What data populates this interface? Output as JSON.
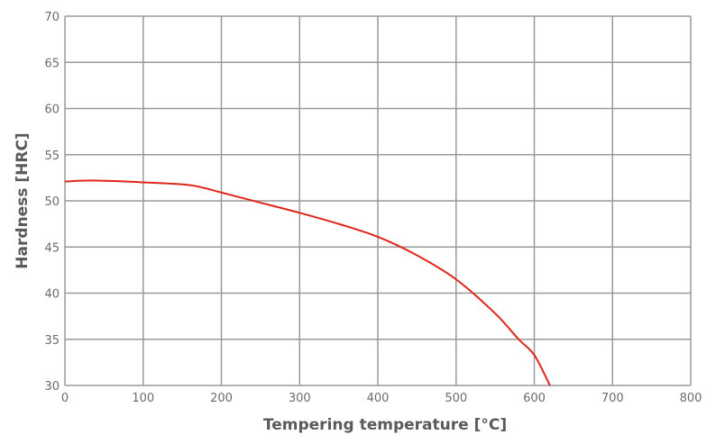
{
  "chart_data": {
    "type": "line",
    "title": "",
    "xlabel": "Tempering temperature [°C]",
    "ylabel": "Hardness [HRC]",
    "xlim": [
      0,
      800
    ],
    "ylim": [
      30,
      70
    ],
    "xticks": [
      0,
      100,
      200,
      300,
      400,
      500,
      600,
      700,
      800
    ],
    "yticks": [
      30,
      35,
      40,
      45,
      50,
      55,
      60,
      65,
      70
    ],
    "grid": true,
    "legend": null,
    "series": [
      {
        "name": "Hardness",
        "color": "#e0251b",
        "x": [
          0,
          40,
          100,
          160,
          200,
          250,
          300,
          350,
          400,
          450,
          500,
          550,
          580,
          600,
          620
        ],
        "y": [
          52.1,
          52.2,
          52.0,
          51.7,
          50.9,
          49.8,
          48.7,
          47.5,
          46.1,
          44.1,
          41.5,
          37.8,
          35.0,
          33.3,
          30.0
        ]
      }
    ]
  },
  "colors": {
    "grid": "#9a9a9a",
    "line": "#e0251b",
    "text": "#6b6b6b"
  }
}
